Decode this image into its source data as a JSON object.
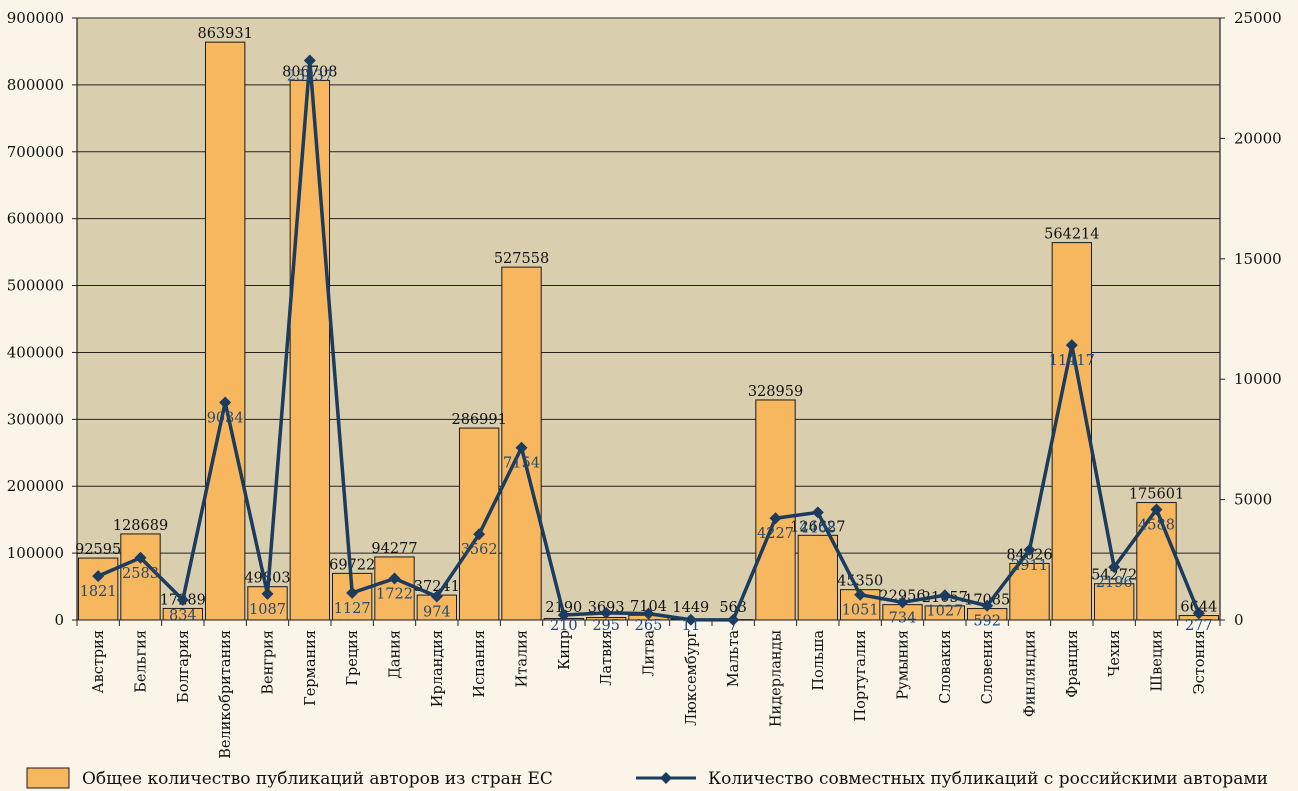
{
  "colors": {
    "plot_bg": "#d9cfae",
    "bar_fill": "#f7b75e",
    "bar_stroke": "#1a1a1a",
    "line": "#1b3b5f",
    "grid": "#222222",
    "line_label": "#1f4a7a"
  },
  "chart_data": {
    "type": "bar",
    "title": "",
    "xlabel": "",
    "ylabel": "",
    "ylim": [
      0,
      900000
    ],
    "y2lim": [
      0,
      25000
    ],
    "yticks": [
      0,
      100000,
      200000,
      300000,
      400000,
      500000,
      600000,
      700000,
      800000,
      900000
    ],
    "y2ticks": [
      0,
      5000,
      10000,
      15000,
      20000,
      25000
    ],
    "grid": true,
    "legend_position": "bottom",
    "categories": [
      "Австрия",
      "Бельгия",
      "Болгария",
      "Великобритания",
      "Венгрия",
      "Германия",
      "Греция",
      "Дания",
      "Ирландия",
      "Испания",
      "Италия",
      "Кипр",
      "Латвия",
      "Литва",
      "Люксембург",
      "Мальта",
      "Нидерланды",
      "Польша",
      "Португалия",
      "Румыния",
      "Словакия",
      "Словения",
      "Финляндия",
      "Франция",
      "Чехия",
      "Швеция",
      "Эстония"
    ],
    "series": [
      {
        "name": "Общее количество публикаций авторов из стран ЕС",
        "type": "bar",
        "axis": "left",
        "values": [
          92595,
          128689,
          17289,
          863931,
          49803,
          806708,
          69722,
          94277,
          37241,
          286991,
          527558,
          2190,
          3693,
          7104,
          1449,
          563,
          328959,
          126627,
          45350,
          22956,
          21057,
          17085,
          84626,
          564214,
          54272,
          175601,
          6644
        ]
      },
      {
        "name": "Количество совместных публикаций с российскими авторами",
        "type": "line",
        "axis": "right",
        "values": [
          1821,
          2583,
          834,
          9034,
          1087,
          23237,
          1127,
          1722,
          974,
          3562,
          7154,
          210,
          295,
          265,
          11,
          7,
          4227,
          4468,
          1051,
          734,
          1027,
          592,
          2911,
          11417,
          2196,
          4588,
          277
        ]
      }
    ]
  }
}
